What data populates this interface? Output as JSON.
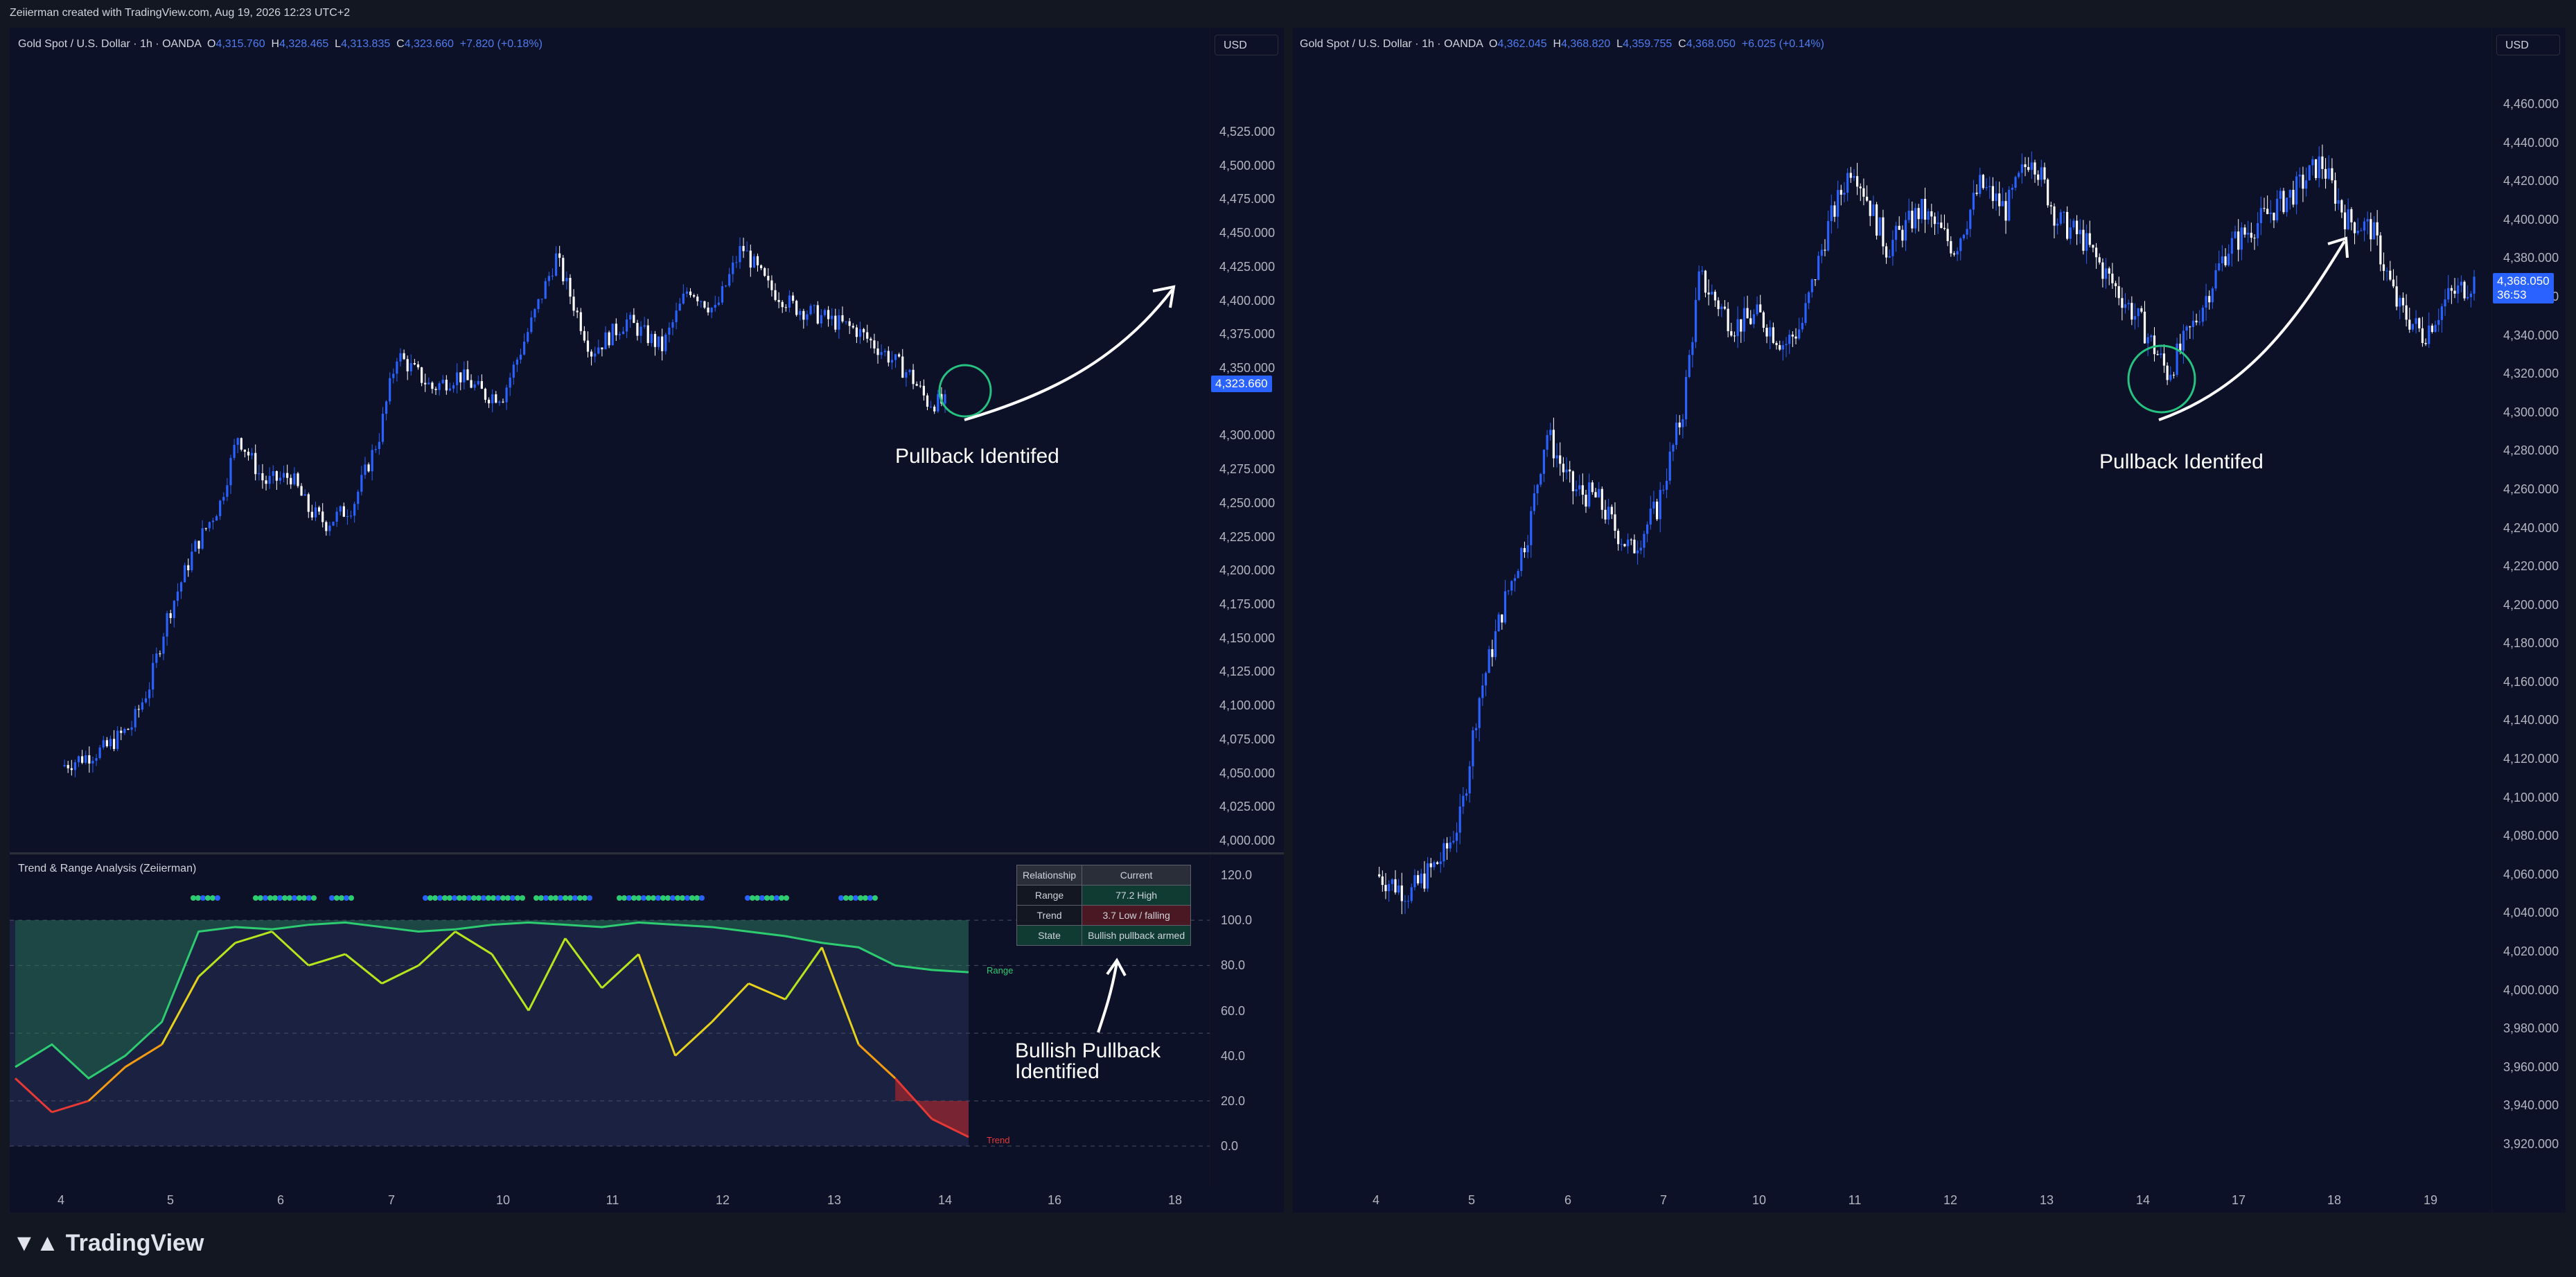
{
  "topbar": {
    "text": "Zeiierman created with TradingView.com, Aug 19, 2026 12:23 UTC+2"
  },
  "left": {
    "symbol": "Gold Spot / U.S. Dollar · 1h · OANDA",
    "o_label": "O",
    "o": "4,315.760",
    "h_label": "H",
    "h": "4,328.465",
    "l_label": "L",
    "l": "4,313.835",
    "c_label": "C",
    "c": "4,323.660",
    "change": "+7.820 (+0.18%)",
    "currency": "USD",
    "last_price": "4,323.660",
    "y_ticks": [
      "4,525.000",
      "4,500.000",
      "4,475.000",
      "4,450.000",
      "4,425.000",
      "4,400.000",
      "4,375.000",
      "4,350.000",
      "4,300.000",
      "4,275.000",
      "4,250.000",
      "4,225.000",
      "4,200.000",
      "4,175.000",
      "4,150.000",
      "4,125.000",
      "4,100.000",
      "4,075.000",
      "4,050.000",
      "4,025.000",
      "4,000.000"
    ],
    "x_ticks": [
      "4",
      "5",
      "6",
      "7",
      "10",
      "11",
      "12",
      "13",
      "14",
      "16",
      "18"
    ],
    "annotation": "Pullback Identifed"
  },
  "indicator": {
    "title": "Trend & Range Analysis (Zeiierman)",
    "y_ticks": [
      "120.0",
      "100.0",
      "80.0",
      "60.0",
      "40.0",
      "20.0",
      "0.0"
    ],
    "range_label": "Range",
    "trend_label": "Trend",
    "table": {
      "header": [
        "Relationship",
        "Current"
      ],
      "rows": [
        [
          "Range",
          "77.2  High"
        ],
        [
          "Trend",
          "3.7  Low / falling"
        ],
        [
          "State",
          "Bullish pullback armed"
        ]
      ]
    },
    "annotation_line1": "Bullish Pullback",
    "annotation_line2": "Identified"
  },
  "right": {
    "symbol": "Gold Spot / U.S. Dollar · 1h · OANDA",
    "o_label": "O",
    "o": "4,362.045",
    "h_label": "H",
    "h": "4,368.820",
    "l_label": "L",
    "l": "4,359.755",
    "c_label": "C",
    "c": "4,368.050",
    "change": "+6.025 (+0.14%)",
    "currency": "USD",
    "last_price": "4,368.050",
    "countdown": "36:53",
    "y_ticks": [
      "4,460.000",
      "4,440.000",
      "4,420.000",
      "4,400.000",
      "4,380.000",
      "4,360.000",
      "4,340.000",
      "4,320.000",
      "4,300.000",
      "4,280.000",
      "4,260.000",
      "4,240.000",
      "4,220.000",
      "4,200.000",
      "4,180.000",
      "4,160.000",
      "4,140.000",
      "4,120.000",
      "4,100.000",
      "4,080.000",
      "4,060.000",
      "4,040.000",
      "4,020.000",
      "4,000.000",
      "3,980.000",
      "3,960.000",
      "3,940.000",
      "3,920.000"
    ],
    "x_ticks": [
      "4",
      "5",
      "6",
      "7",
      "10",
      "11",
      "12",
      "13",
      "14",
      "17",
      "18",
      "19"
    ],
    "annotation": "Pullback Identifed"
  },
  "brand": {
    "name": "TradingView"
  },
  "colors": {
    "up": "#2962ff",
    "down": "#ffffff",
    "background": "#0d1127",
    "circle": "#26c281",
    "range_line": "#2ecc71",
    "trend_low": "#e53935"
  },
  "chart_data": [
    {
      "type": "candlestick",
      "title": "Gold Spot / U.S. Dollar · 1h · OANDA",
      "x_ticks": [
        "4",
        "5",
        "6",
        "7",
        "10",
        "11",
        "12",
        "13",
        "14",
        "16",
        "18"
      ],
      "ylim": [
        4000,
        4525
      ],
      "close_path": [
        [
          4,
          4055
        ],
        [
          4.5,
          4068
        ],
        [
          4.8,
          4085
        ],
        [
          5.0,
          4115
        ],
        [
          5.2,
          4165
        ],
        [
          5.5,
          4215
        ],
        [
          5.8,
          4250
        ],
        [
          6.0,
          4300
        ],
        [
          6.3,
          4265
        ],
        [
          6.6,
          4270
        ],
        [
          6.8,
          4245
        ],
        [
          7.0,
          4235
        ],
        [
          7.3,
          4248
        ],
        [
          7.6,
          4300
        ],
        [
          7.8,
          4360
        ],
        [
          8.2,
          4335
        ],
        [
          8.5,
          4345
        ],
        [
          8.8,
          4330
        ],
        [
          9.0,
          4330
        ],
        [
          9.3,
          4380
        ],
        [
          9.6,
          4432
        ],
        [
          10.0,
          4362
        ],
        [
          10.4,
          4385
        ],
        [
          10.8,
          4365
        ],
        [
          11.1,
          4410
        ],
        [
          11.4,
          4392
        ],
        [
          11.7,
          4440
        ],
        [
          12.0,
          4410
        ],
        [
          12.3,
          4395
        ],
        [
          12.6,
          4388
        ],
        [
          13.0,
          4378
        ],
        [
          13.3,
          4362
        ],
        [
          13.6,
          4345
        ],
        [
          13.8,
          4325
        ],
        [
          14.0,
          4323.66
        ]
      ]
    },
    {
      "type": "line",
      "title": "Trend & Range Analysis (Zeiierman)",
      "ylim": [
        0,
        120
      ],
      "series": [
        {
          "name": "Range",
          "values": [
            35,
            45,
            30,
            40,
            55,
            95,
            97,
            96,
            98,
            99,
            97,
            95,
            96,
            98,
            99,
            98,
            97,
            99,
            98,
            97,
            95,
            93,
            90,
            88,
            80,
            78,
            77
          ]
        },
        {
          "name": "Trend",
          "values": [
            30,
            15,
            20,
            35,
            45,
            75,
            90,
            95,
            80,
            85,
            72,
            80,
            95,
            85,
            60,
            92,
            70,
            85,
            40,
            55,
            72,
            65,
            88,
            45,
            30,
            12,
            4
          ]
        }
      ]
    },
    {
      "type": "candlestick",
      "title": "Gold Spot / U.S. Dollar · 1h · OANDA",
      "x_ticks": [
        "4",
        "5",
        "6",
        "7",
        "10",
        "11",
        "12",
        "13",
        "14",
        "17",
        "18",
        "19"
      ],
      "ylim": [
        3920,
        4460
      ],
      "close_path": [
        [
          4,
          4060
        ],
        [
          4.4,
          4050
        ],
        [
          4.8,
          4070
        ],
        [
          5.0,
          4090
        ],
        [
          5.2,
          4150
        ],
        [
          5.5,
          4200
        ],
        [
          5.8,
          4240
        ],
        [
          6.0,
          4290
        ],
        [
          6.3,
          4260
        ],
        [
          6.6,
          4255
        ],
        [
          6.8,
          4240
        ],
        [
          7.0,
          4228
        ],
        [
          7.3,
          4250
        ],
        [
          7.6,
          4300
        ],
        [
          7.8,
          4370
        ],
        [
          8.2,
          4345
        ],
        [
          8.5,
          4350
        ],
        [
          8.8,
          4335
        ],
        [
          9.0,
          4345
        ],
        [
          9.3,
          4395
        ],
        [
          9.6,
          4430
        ],
        [
          10.0,
          4385
        ],
        [
          10.4,
          4405
        ],
        [
          10.8,
          4385
        ],
        [
          11.1,
          4418
        ],
        [
          11.4,
          4405
        ],
        [
          11.7,
          4435
        ],
        [
          12.0,
          4400
        ],
        [
          12.3,
          4390
        ],
        [
          12.6,
          4370
        ],
        [
          13.0,
          4345
        ],
        [
          13.3,
          4320
        ],
        [
          13.6,
          4345
        ],
        [
          14.0,
          4385
        ],
        [
          14.4,
          4400
        ],
        [
          14.8,
          4415
        ],
        [
          15.1,
          4430
        ],
        [
          15.4,
          4400
        ],
        [
          15.7,
          4395
        ],
        [
          16.0,
          4355
        ],
        [
          16.3,
          4340
        ],
        [
          16.6,
          4360
        ],
        [
          16.9,
          4368
        ]
      ]
    }
  ]
}
